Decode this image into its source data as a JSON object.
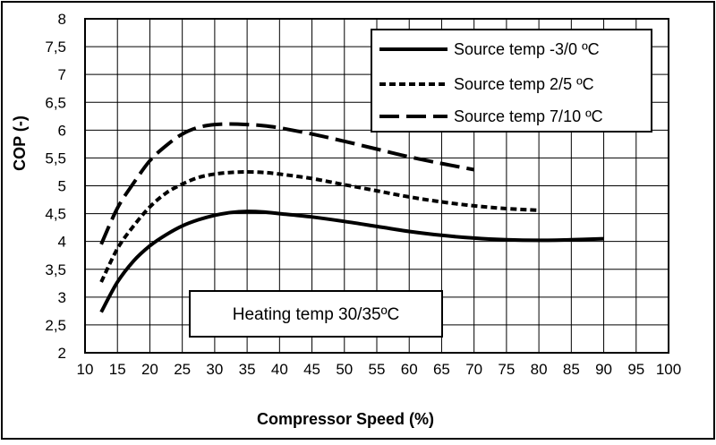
{
  "chart_data": {
    "type": "line",
    "title": "",
    "xlabel": "Compressor Speed (%)",
    "ylabel": "COP (-)",
    "xlim": [
      10,
      100
    ],
    "ylim": [
      2,
      8
    ],
    "xticks": [
      10,
      15,
      20,
      25,
      30,
      35,
      40,
      45,
      50,
      55,
      60,
      65,
      70,
      75,
      80,
      85,
      90,
      95,
      100
    ],
    "yticks": [
      2,
      2.5,
      3,
      3.5,
      4,
      4.5,
      5,
      5.5,
      6,
      6.5,
      7,
      7.5,
      8
    ],
    "xtick_labels": [
      "10",
      "15",
      "20",
      "25",
      "30",
      "35",
      "40",
      "45",
      "50",
      "55",
      "60",
      "65",
      "70",
      "75",
      "80",
      "85",
      "90",
      "95",
      "100"
    ],
    "ytick_labels": [
      "2",
      "2,5",
      "3",
      "3,5",
      "4",
      "4,5",
      "5",
      "5,5",
      "6",
      "6,5",
      "7",
      "7,5",
      "8"
    ],
    "grid": true,
    "legend_position": "top-right",
    "series": [
      {
        "name": "Source temp -3/0 ºC",
        "style": "solid",
        "x": [
          12.5,
          15,
          17.5,
          20,
          22.5,
          25,
          27.5,
          30,
          32.5,
          35,
          37.5,
          40,
          45,
          50,
          55,
          60,
          65,
          70,
          75,
          80,
          85,
          90
        ],
        "y": [
          2.73,
          3.27,
          3.65,
          3.92,
          4.12,
          4.28,
          4.39,
          4.47,
          4.52,
          4.54,
          4.53,
          4.5,
          4.44,
          4.36,
          4.27,
          4.18,
          4.11,
          4.06,
          4.03,
          4.02,
          4.03,
          4.05
        ]
      },
      {
        "name": "Source temp 2/5 ºC",
        "style": "short-dash",
        "x": [
          12.5,
          15,
          17.5,
          20,
          22.5,
          25,
          27.5,
          30,
          32.5,
          35,
          37.5,
          40,
          45,
          50,
          55,
          60,
          65,
          70,
          75,
          80
        ],
        "y": [
          3.27,
          3.87,
          4.28,
          4.62,
          4.87,
          5.03,
          5.15,
          5.21,
          5.24,
          5.25,
          5.24,
          5.21,
          5.13,
          5.02,
          4.91,
          4.8,
          4.71,
          4.64,
          4.59,
          4.56
        ]
      },
      {
        "name": "Source temp 7/10 ºC",
        "style": "long-dash",
        "x": [
          12.5,
          15,
          17.5,
          20,
          22.5,
          25,
          27.5,
          30,
          32.5,
          35,
          37.5,
          40,
          45,
          50,
          55,
          60,
          65,
          70
        ],
        "y": [
          3.95,
          4.6,
          5.05,
          5.45,
          5.72,
          5.93,
          6.05,
          6.1,
          6.11,
          6.1,
          6.08,
          6.04,
          5.93,
          5.8,
          5.66,
          5.52,
          5.4,
          5.29
        ]
      }
    ],
    "annotations": [
      "Heating temp 30/35ºC"
    ]
  }
}
